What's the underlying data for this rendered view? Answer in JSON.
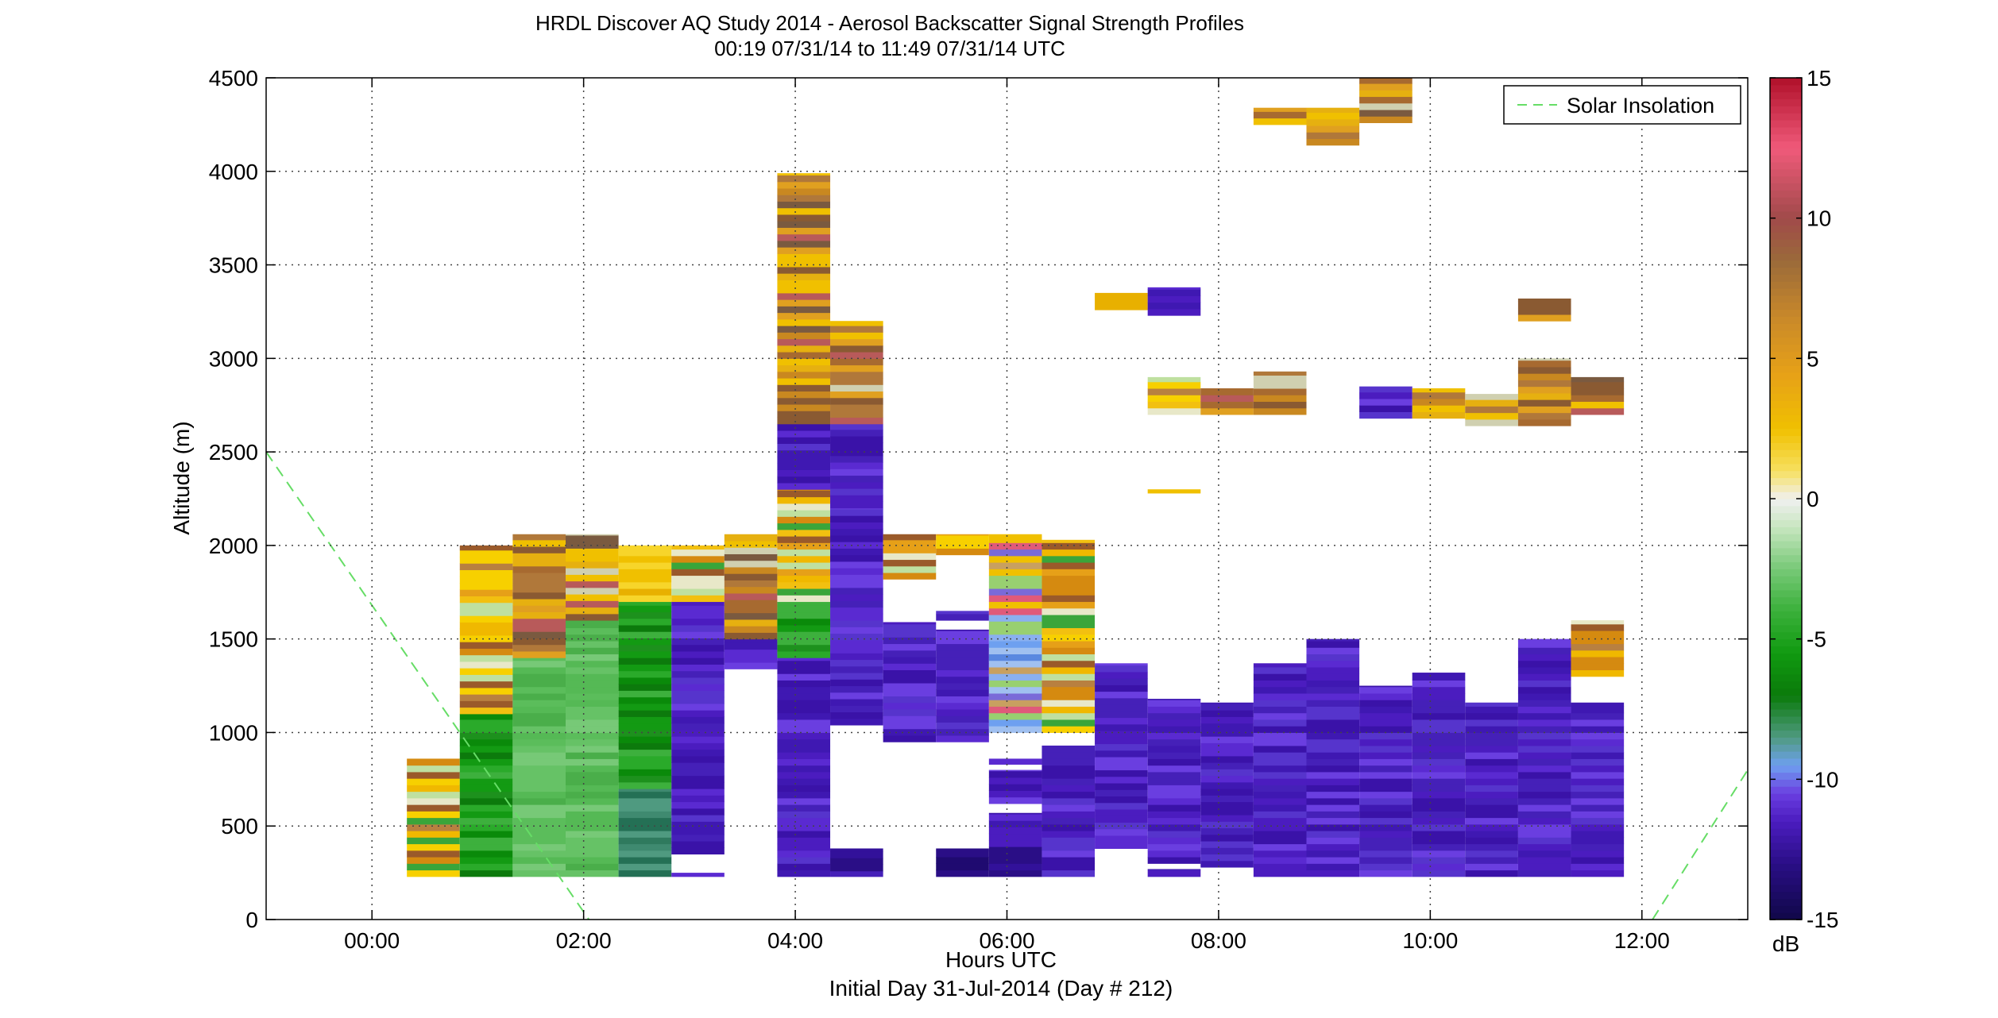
{
  "chart_data": {
    "type": "heatmap",
    "title": "HRDL Discover AQ Study 2014 - Aerosol Backscatter Signal Strength Profiles",
    "subtitle": "00:19 07/31/14 to 11:49 07/31/14  UTC",
    "xlabel": "Hours UTC",
    "xlabel2": "Initial Day 31-Jul-2014 (Day # 212)",
    "ylabel": "Altitude (m)",
    "xlim": [
      -1.0,
      13.0
    ],
    "ylim": [
      0,
      4500
    ],
    "x_ticks": [
      0,
      2,
      4,
      6,
      8,
      10,
      12
    ],
    "x_tick_labels": [
      "00:00",
      "02:00",
      "04:00",
      "06:00",
      "08:00",
      "10:00",
      "12:00"
    ],
    "y_ticks": [
      0,
      500,
      1000,
      1500,
      2000,
      2500,
      3000,
      3500,
      4000,
      4500
    ],
    "y_tick_labels": [
      "0",
      "500",
      "1000",
      "1500",
      "2000",
      "2500",
      "3000",
      "3500",
      "4000",
      "4500"
    ],
    "grid": true,
    "legend_position": "top-right",
    "legend": [
      {
        "name": "Solar Insolation",
        "style": "dashed",
        "color": "#66dd66"
      }
    ],
    "colorbar": {
      "label": "dB",
      "range": [
        -15,
        15
      ],
      "ticks": [
        -15,
        -10,
        -5,
        0,
        5,
        10,
        15
      ],
      "tick_labels": [
        "-15",
        "-10",
        "-5",
        "0",
        "5",
        "10",
        "15"
      ]
    },
    "solar_insolation_line": [
      {
        "x": -1.0,
        "y": 2500
      },
      {
        "x": 2.05,
        "y": 0
      },
      {
        "x": 12.1,
        "y": 0
      },
      {
        "x": 13.0,
        "y": 800
      }
    ],
    "profile_width_hours": 0.5,
    "profiles": [
      {
        "t": 0.58,
        "segments": [
          [
            230,
            860,
            "mix1"
          ]
        ]
      },
      {
        "t": 1.08,
        "segments": [
          [
            230,
            1100,
            "green"
          ],
          [
            1100,
            2000,
            "mix1"
          ]
        ]
      },
      {
        "t": 1.58,
        "segments": [
          [
            230,
            1400,
            "lgreen"
          ],
          [
            1400,
            2060,
            "mix2"
          ]
        ]
      },
      {
        "t": 2.08,
        "segments": [
          [
            230,
            1600,
            "lgreen"
          ],
          [
            1600,
            2060,
            "mix2"
          ]
        ]
      },
      {
        "t": 2.58,
        "segments": [
          [
            230,
            700,
            "teal"
          ],
          [
            700,
            1700,
            "green"
          ],
          [
            1700,
            2000,
            "yellow"
          ]
        ]
      },
      {
        "t": 3.08,
        "segments": [
          [
            230,
            250,
            "purple"
          ],
          [
            350,
            1700,
            "purple"
          ],
          [
            1700,
            2000,
            "mix1"
          ]
        ]
      },
      {
        "t": 3.58,
        "segments": [
          [
            1340,
            1500,
            "purple"
          ],
          [
            1500,
            2060,
            "mix2"
          ]
        ]
      },
      {
        "t": 4.08,
        "segments": [
          [
            230,
            1400,
            "purple"
          ],
          [
            1400,
            1700,
            "green"
          ],
          [
            1700,
            2300,
            "mix1"
          ],
          [
            2300,
            2650,
            "purple"
          ],
          [
            2650,
            3990,
            "mix2"
          ]
        ]
      },
      {
        "t": 4.58,
        "segments": [
          [
            230,
            260,
            "purple"
          ],
          [
            260,
            380,
            "darkpurple"
          ],
          [
            1040,
            2200,
            "purple"
          ],
          [
            2200,
            2650,
            "purple"
          ],
          [
            2650,
            3200,
            "mix2"
          ]
        ]
      },
      {
        "t": 5.08,
        "segments": [
          [
            950,
            1590,
            "purple"
          ],
          [
            1820,
            2060,
            "mix1"
          ]
        ]
      },
      {
        "t": 5.58,
        "segments": [
          [
            230,
            380,
            "darkpurple"
          ],
          [
            950,
            1550,
            "purple"
          ],
          [
            1600,
            1650,
            "purple"
          ],
          [
            1950,
            2060,
            "mix1"
          ]
        ]
      },
      {
        "t": 6.08,
        "segments": [
          [
            230,
            390,
            "darkpurple"
          ],
          [
            390,
            570,
            "purple"
          ],
          [
            620,
            800,
            "purple"
          ],
          [
            830,
            860,
            "purple"
          ],
          [
            1000,
            2060,
            "mix3"
          ]
        ]
      },
      {
        "t": 6.58,
        "segments": [
          [
            230,
            930,
            "purple"
          ],
          [
            1000,
            2030,
            "mix1"
          ]
        ]
      },
      {
        "t": 7.08,
        "segments": [
          [
            380,
            1370,
            "purple"
          ],
          [
            3260,
            3350,
            "yellow"
          ]
        ]
      },
      {
        "t": 7.58,
        "segments": [
          [
            230,
            270,
            "purple"
          ],
          [
            300,
            1180,
            "purple"
          ],
          [
            2280,
            2300,
            "yellow"
          ],
          [
            2700,
            2900,
            "mix1"
          ],
          [
            3230,
            3380,
            "purple"
          ]
        ]
      },
      {
        "t": 8.08,
        "segments": [
          [
            280,
            1160,
            "purple"
          ],
          [
            2700,
            2840,
            "mix2"
          ]
        ]
      },
      {
        "t": 8.58,
        "segments": [
          [
            230,
            1370,
            "purple"
          ],
          [
            2700,
            2930,
            "mix2"
          ],
          [
            4250,
            4340,
            "mix2"
          ]
        ]
      },
      {
        "t": 9.08,
        "segments": [
          [
            230,
            1500,
            "purple"
          ],
          [
            4140,
            4340,
            "mix2"
          ]
        ]
      },
      {
        "t": 9.58,
        "segments": [
          [
            230,
            1250,
            "purple"
          ],
          [
            2680,
            2850,
            "purple"
          ],
          [
            4260,
            4500,
            "mix2"
          ]
        ]
      },
      {
        "t": 10.08,
        "segments": [
          [
            230,
            1320,
            "purple"
          ],
          [
            2680,
            2840,
            "mix2"
          ]
        ]
      },
      {
        "t": 10.58,
        "segments": [
          [
            230,
            1160,
            "purple"
          ],
          [
            2640,
            2810,
            "mix2"
          ]
        ]
      },
      {
        "t": 11.08,
        "segments": [
          [
            230,
            1500,
            "purple"
          ],
          [
            2640,
            3000,
            "mix2"
          ],
          [
            3200,
            3320,
            "mix2"
          ]
        ]
      },
      {
        "t": 11.58,
        "segments": [
          [
            230,
            1160,
            "purple"
          ],
          [
            1300,
            1600,
            "mix1"
          ],
          [
            2700,
            2900,
            "mix2"
          ]
        ]
      }
    ]
  }
}
